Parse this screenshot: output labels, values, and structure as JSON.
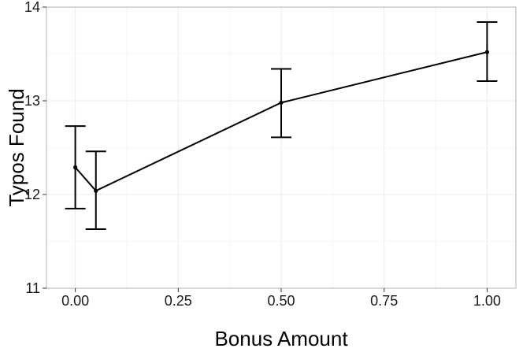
{
  "chart_data": {
    "type": "line",
    "title": "",
    "xlabel": "Bonus Amount",
    "ylabel": "Typos Found",
    "xlim": [
      -0.07,
      1.07
    ],
    "ylim": [
      11,
      14
    ],
    "x_ticks": [
      0.0,
      0.25,
      0.5,
      0.75,
      1.0
    ],
    "x_tick_labels": [
      "0.00",
      "0.25",
      "0.50",
      "0.75",
      "1.00"
    ],
    "y_ticks": [
      11,
      12,
      13,
      14
    ],
    "y_tick_labels": [
      "11",
      "12",
      "13",
      "14"
    ],
    "grid": true,
    "legend": "none",
    "series": [
      {
        "color": "#000000",
        "points": [
          {
            "x": 0.0,
            "y": 12.29,
            "ymin": 11.85,
            "ymax": 12.73
          },
          {
            "x": 0.05,
            "y": 12.04,
            "ymin": 11.63,
            "ymax": 12.46
          },
          {
            "x": 0.5,
            "y": 12.98,
            "ymin": 12.61,
            "ymax": 13.34
          },
          {
            "x": 1.0,
            "y": 13.52,
            "ymin": 13.21,
            "ymax": 13.84
          }
        ]
      }
    ]
  }
}
